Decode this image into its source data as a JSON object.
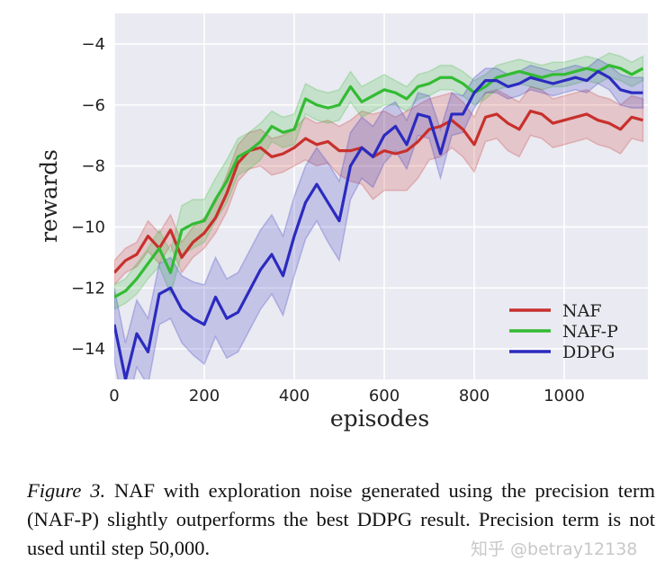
{
  "chart_data": {
    "type": "line",
    "title": "",
    "xlabel": "episodes",
    "ylabel": "rewards",
    "xlim": [
      0,
      1186
    ],
    "ylim": [
      -15,
      -3
    ],
    "xticks": [
      "0",
      "200",
      "400",
      "600",
      "800",
      "1000"
    ],
    "yticks": [
      "-4",
      "-6",
      "-8",
      "-10",
      "-12",
      "-14"
    ],
    "grid": true,
    "background": "#eaeaf2",
    "legend_position": "bottom-right",
    "x": [
      0,
      25,
      50,
      75,
      100,
      125,
      150,
      175,
      200,
      225,
      250,
      275,
      300,
      325,
      350,
      375,
      400,
      425,
      450,
      475,
      500,
      525,
      550,
      575,
      600,
      625,
      650,
      675,
      700,
      725,
      750,
      775,
      800,
      825,
      850,
      875,
      900,
      925,
      950,
      975,
      1000,
      1025,
      1050,
      1075,
      1100,
      1125,
      1150,
      1175
    ],
    "series": [
      {
        "name": "NAF",
        "color": "#c8302c",
        "values": [
          -11.5,
          -11.1,
          -10.9,
          -10.3,
          -10.7,
          -10.1,
          -11.0,
          -10.5,
          -10.2,
          -9.7,
          -8.9,
          -7.9,
          -7.5,
          -7.4,
          -7.7,
          -7.6,
          -7.4,
          -7.1,
          -7.3,
          -7.2,
          -7.5,
          -7.5,
          -7.4,
          -7.7,
          -7.5,
          -7.6,
          -7.5,
          -7.2,
          -6.8,
          -6.7,
          -6.5,
          -6.8,
          -7.3,
          -6.4,
          -6.3,
          -6.6,
          -6.8,
          -6.2,
          -6.3,
          -6.6,
          -6.5,
          -6.4,
          -6.3,
          -6.5,
          -6.6,
          -6.8,
          -6.4,
          -6.5
        ],
        "spread": [
          0.4,
          0.4,
          0.4,
          0.5,
          0.5,
          0.5,
          0.5,
          0.5,
          0.5,
          0.5,
          0.6,
          0.6,
          0.6,
          0.6,
          0.6,
          0.6,
          0.6,
          0.7,
          0.7,
          0.7,
          0.8,
          1.0,
          1.2,
          1.4,
          1.3,
          1.2,
          1.3,
          1.2,
          1.0,
          1.0,
          0.9,
          0.9,
          0.9,
          0.8,
          0.8,
          0.9,
          0.9,
          0.8,
          0.8,
          0.8,
          0.8,
          0.8,
          0.8,
          0.8,
          0.8,
          0.8,
          0.7,
          0.7
        ]
      },
      {
        "name": "NAF-P",
        "color": "#33bb33",
        "values": [
          -12.3,
          -12.1,
          -11.7,
          -11.2,
          -10.7,
          -11.5,
          -10.1,
          -9.9,
          -9.8,
          -9.1,
          -8.5,
          -7.7,
          -7.5,
          -7.2,
          -6.7,
          -6.9,
          -6.8,
          -5.8,
          -6.0,
          -6.1,
          -6.0,
          -5.4,
          -5.9,
          -5.7,
          -5.5,
          -5.6,
          -5.8,
          -5.4,
          -5.3,
          -5.1,
          -5.1,
          -5.3,
          -5.6,
          -5.4,
          -5.1,
          -5.0,
          -4.9,
          -5.0,
          -5.1,
          -5.0,
          -5.0,
          -4.9,
          -4.8,
          -4.9,
          -4.7,
          -4.8,
          -5.0,
          -4.8
        ],
        "spread": [
          0.4,
          0.4,
          0.5,
          0.5,
          0.6,
          0.7,
          0.8,
          0.8,
          0.7,
          0.7,
          0.7,
          0.6,
          0.6,
          0.6,
          0.5,
          0.5,
          0.5,
          0.5,
          0.5,
          0.5,
          0.5,
          0.5,
          0.5,
          0.5,
          0.5,
          0.4,
          0.4,
          0.4,
          0.4,
          0.4,
          0.4,
          0.4,
          0.4,
          0.4,
          0.4,
          0.4,
          0.4,
          0.4,
          0.4,
          0.4,
          0.4,
          0.4,
          0.4,
          0.4,
          0.4,
          0.4,
          0.4,
          0.4
        ]
      },
      {
        "name": "DDPG",
        "color": "#2b2bbf",
        "values": [
          -13.2,
          -15.0,
          -13.5,
          -14.1,
          -12.2,
          -12.0,
          -12.7,
          -13.0,
          -13.2,
          -12.3,
          -13.0,
          -12.8,
          -12.1,
          -11.4,
          -10.9,
          -11.6,
          -10.3,
          -9.2,
          -8.6,
          -9.2,
          -9.8,
          -8.0,
          -7.4,
          -7.7,
          -7.0,
          -6.7,
          -7.3,
          -6.3,
          -6.4,
          -7.6,
          -6.3,
          -6.3,
          -5.6,
          -5.2,
          -5.2,
          -5.4,
          -5.3,
          -5.1,
          -5.2,
          -5.3,
          -5.2,
          -5.1,
          -5.2,
          -4.9,
          -5.1,
          -5.5,
          -5.6,
          -5.6
        ],
        "spread": [
          1.2,
          1.2,
          1.1,
          1.1,
          1.0,
          1.0,
          1.1,
          1.2,
          1.3,
          1.3,
          1.3,
          1.3,
          1.3,
          1.3,
          1.3,
          1.3,
          1.3,
          1.2,
          1.2,
          1.3,
          1.3,
          1.1,
          1.0,
          1.0,
          0.9,
          0.8,
          0.8,
          0.7,
          0.7,
          0.8,
          0.7,
          0.6,
          0.5,
          0.4,
          0.4,
          0.4,
          0.4,
          0.4,
          0.4,
          0.4,
          0.4,
          0.4,
          0.4,
          0.4,
          0.4,
          0.5,
          0.5,
          0.5
        ]
      }
    ]
  },
  "caption": {
    "figure_label": "Figure 3.",
    "text": " NAF with exploration noise generated using the precision term (NAF-P) slightly outperforms the best DDPG result. Precision term is not used until step 50,000."
  },
  "watermark": "知乎 @betray12138"
}
